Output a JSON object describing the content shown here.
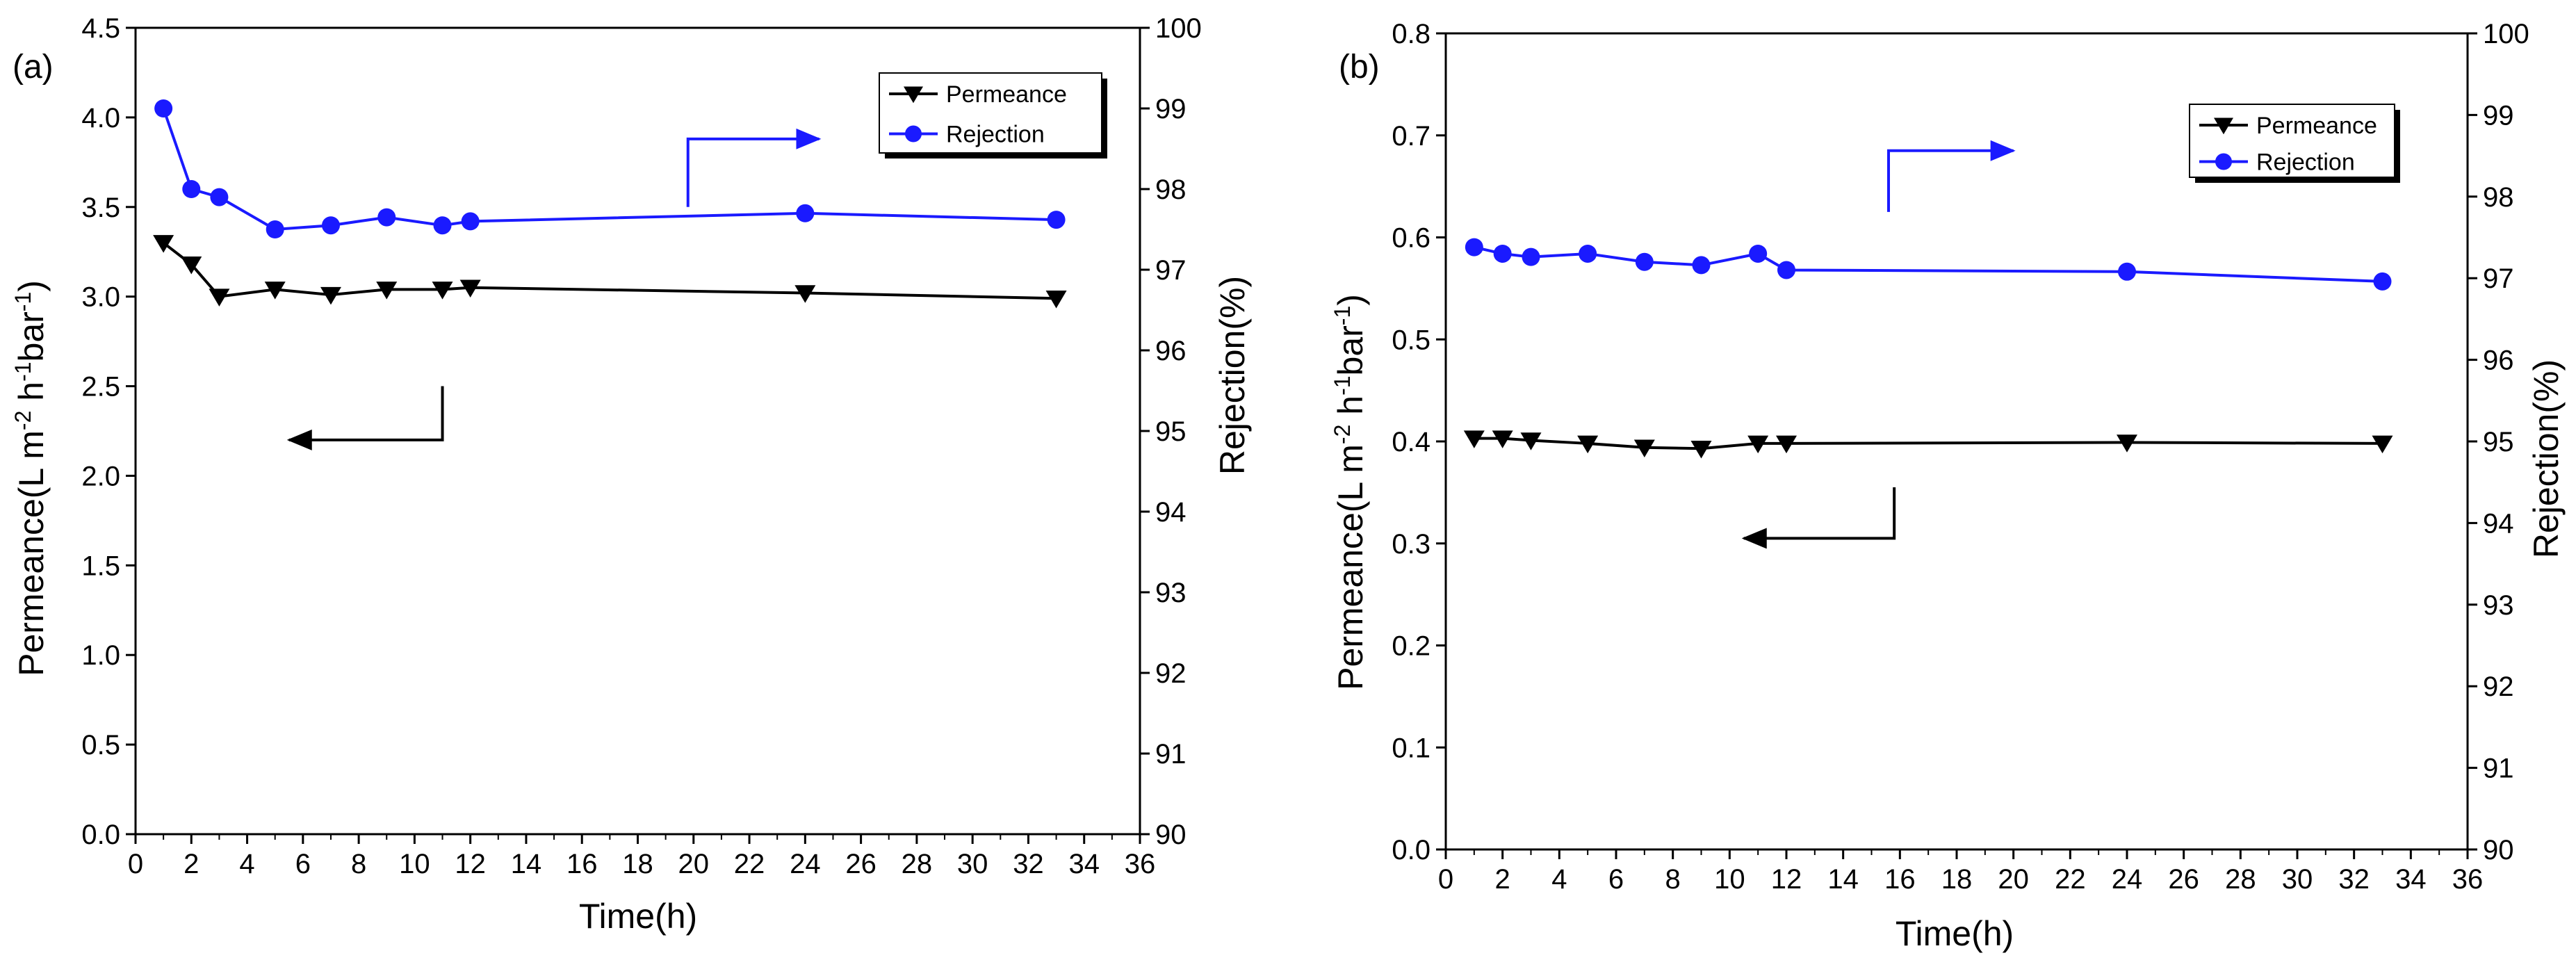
{
  "chart_data": [
    {
      "type": "line",
      "panel_label": "(a)",
      "xlabel": "Time(h)",
      "ylabel_left": "Permeance(L m-2 h-1 bar-1)",
      "ylabel_right": "Rejection(%)",
      "xlim": [
        0,
        36
      ],
      "ylim_left": [
        0,
        4.5
      ],
      "ylim_right": [
        90,
        100
      ],
      "xticks": [
        "0",
        "2",
        "4",
        "6",
        "8",
        "10",
        "12",
        "14",
        "16",
        "18",
        "20",
        "22",
        "24",
        "26",
        "28",
        "30",
        "32",
        "34",
        "36"
      ],
      "yticks_left": [
        "0.0",
        "0.5",
        "1.0",
        "1.5",
        "2.0",
        "2.5",
        "3.0",
        "3.5",
        "4.0",
        "4.5"
      ],
      "yticks_right": [
        "90",
        "91",
        "92",
        "93",
        "94",
        "95",
        "96",
        "97",
        "98",
        "99",
        "100"
      ],
      "series": [
        {
          "name": "Permeance",
          "axis": "left",
          "color": "#000000",
          "marker": "triangle-down",
          "x": [
            1,
            2,
            3,
            5,
            7,
            9,
            11,
            12,
            24,
            33
          ],
          "y": [
            3.3,
            3.18,
            3.0,
            3.04,
            3.01,
            3.04,
            3.04,
            3.05,
            3.02,
            2.99
          ]
        },
        {
          "name": "Rejection",
          "axis": "right",
          "color": "#1a1aff",
          "marker": "circle",
          "x": [
            1,
            2,
            3,
            5,
            7,
            9,
            11,
            12,
            24,
            33
          ],
          "y": [
            99.0,
            98.0,
            97.9,
            97.5,
            97.55,
            97.65,
            97.55,
            97.6,
            97.7,
            97.62
          ]
        }
      ],
      "legend": {
        "position": "top-right",
        "entries": [
          "Permeance",
          "Rejection"
        ]
      },
      "annotations": [
        {
          "type": "axis-arrow",
          "points_to": "left",
          "series": "Permeance",
          "data_points": [
            [
              11,
              2.5
            ],
            [
              11,
              2.2
            ],
            [
              5.5,
              2.2
            ]
          ]
        },
        {
          "type": "axis-arrow",
          "points_to": "right",
          "series": "Rejection",
          "data_points": [
            [
              19.8,
              3.5
            ],
            [
              19.8,
              3.88
            ],
            [
              24.5,
              3.88
            ]
          ]
        }
      ]
    },
    {
      "type": "line",
      "panel_label": "(b)",
      "xlabel": "Time(h)",
      "ylabel_left": "Permeance(L m-2 h-1 bar-1)",
      "ylabel_right": "Rejection(%)",
      "xlim": [
        0,
        36
      ],
      "ylim_left": [
        0,
        0.8
      ],
      "ylim_right": [
        90,
        100
      ],
      "xticks": [
        "0",
        "2",
        "4",
        "6",
        "8",
        "10",
        "12",
        "14",
        "16",
        "18",
        "20",
        "22",
        "24",
        "26",
        "28",
        "30",
        "32",
        "34",
        "36"
      ],
      "yticks_left": [
        "0.0",
        "0.1",
        "0.2",
        "0.3",
        "0.4",
        "0.5",
        "0.6",
        "0.7",
        "0.8"
      ],
      "yticks_right": [
        "90",
        "91",
        "92",
        "93",
        "94",
        "95",
        "96",
        "97",
        "98",
        "99",
        "100"
      ],
      "series": [
        {
          "name": "Permeance",
          "axis": "left",
          "color": "#000000",
          "marker": "triangle-down",
          "x": [
            1,
            2,
            3,
            5,
            7,
            9,
            11,
            12,
            24,
            33
          ],
          "y": [
            0.403,
            0.403,
            0.401,
            0.398,
            0.394,
            0.393,
            0.398,
            0.398,
            0.399,
            0.398
          ]
        },
        {
          "name": "Rejection",
          "axis": "right",
          "color": "#1a1aff",
          "marker": "circle",
          "x": [
            1,
            2,
            3,
            5,
            7,
            9,
            11,
            12,
            24,
            33
          ],
          "y": [
            97.38,
            97.3,
            97.26,
            97.3,
            97.2,
            97.16,
            97.3,
            97.1,
            97.08,
            96.96
          ]
        }
      ],
      "legend": {
        "position": "top-right",
        "entries": [
          "Permeance",
          "Rejection"
        ]
      },
      "annotations": [
        {
          "type": "axis-arrow",
          "points_to": "left",
          "series": "Permeance",
          "data_points": [
            [
              15.8,
              0.355
            ],
            [
              15.8,
              0.305
            ],
            [
              10.5,
              0.305
            ]
          ]
        },
        {
          "type": "axis-arrow",
          "points_to": "right",
          "series": "Rejection",
          "data_points": [
            [
              15.6,
              0.625
            ],
            [
              15.6,
              0.685
            ],
            [
              20.0,
              0.685
            ]
          ]
        }
      ]
    }
  ]
}
